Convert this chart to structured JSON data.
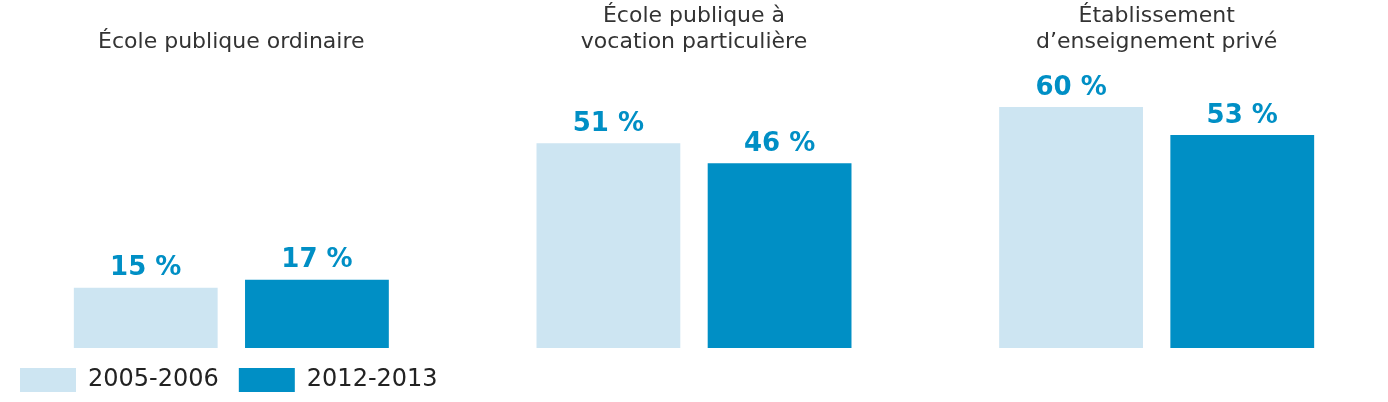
{
  "chart_data": {
    "type": "bar",
    "categories": [
      "École publique ordinaire",
      "École publique à vocation particulière",
      "Établissement d’enseignement privé"
    ],
    "series": [
      {
        "name": "2005-2006",
        "color": "#cde5f2",
        "values": [
          15,
          51,
          60
        ],
        "value_labels": [
          "15 %",
          "51 %",
          "60 %"
        ]
      },
      {
        "name": "2012-2013",
        "color": "#008fc5",
        "values": [
          17,
          46,
          53
        ],
        "value_labels": [
          "17 %",
          "46 %",
          "53 %"
        ]
      }
    ],
    "legend": "bottom left"
  }
}
